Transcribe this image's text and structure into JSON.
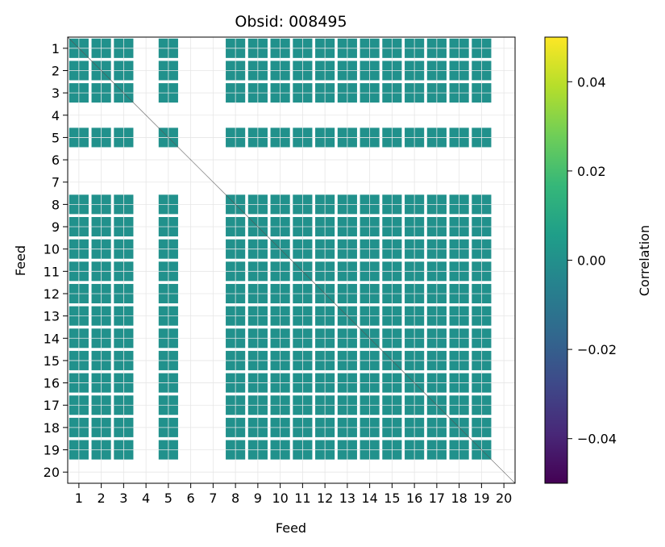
{
  "chart_data": {
    "type": "heatmap",
    "title": "Obsid: 008495",
    "xlabel": "Feed",
    "ylabel": "Feed",
    "x_ticks": [
      "1",
      "2",
      "3",
      "4",
      "5",
      "6",
      "7",
      "8",
      "9",
      "10",
      "11",
      "12",
      "13",
      "14",
      "15",
      "16",
      "17",
      "18",
      "19",
      "20"
    ],
    "y_ticks": [
      "1",
      "2",
      "3",
      "4",
      "5",
      "6",
      "7",
      "8",
      "9",
      "10",
      "11",
      "12",
      "13",
      "14",
      "15",
      "16",
      "17",
      "18",
      "19",
      "20"
    ],
    "feeds": [
      1,
      2,
      3,
      4,
      5,
      6,
      7,
      8,
      9,
      10,
      11,
      12,
      13,
      14,
      15,
      16,
      17,
      18,
      19,
      20
    ],
    "masked_feeds": [
      4,
      6,
      7,
      20
    ],
    "cell_value": 0.0,
    "cell_color": "#21918c",
    "grid": true,
    "colorbar": {
      "label": "Correlation",
      "vmin": -0.05,
      "vmax": 0.05,
      "ticks": [
        0.04,
        0.02,
        0.0,
        -0.02,
        -0.04
      ],
      "tick_labels": [
        "0.04",
        "0.02",
        "0.00",
        "−0.02",
        "−0.04"
      ],
      "colormap": [
        "#440154",
        "#482878",
        "#3e4989",
        "#31688e",
        "#26828e",
        "#1f9e89",
        "#35b779",
        "#6ece58",
        "#b5de2b",
        "#fde725"
      ]
    }
  }
}
